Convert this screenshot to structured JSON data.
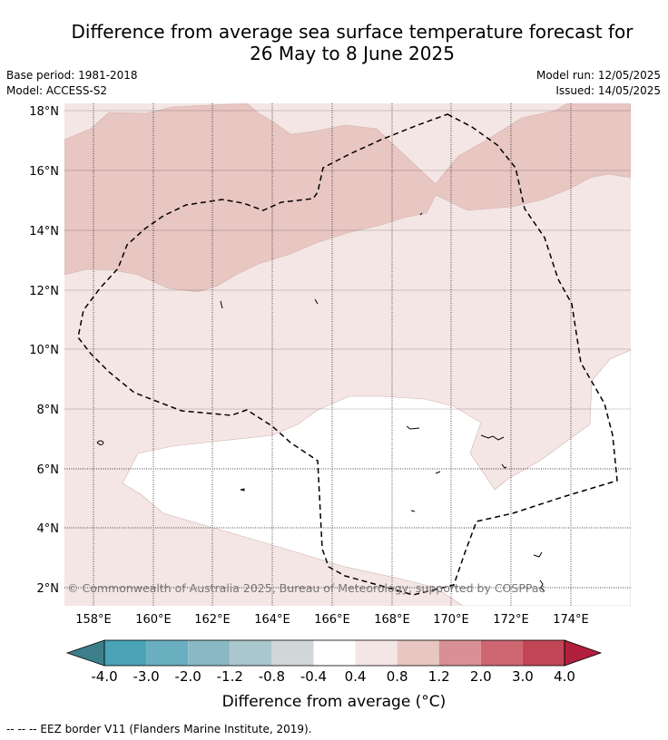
{
  "title_line1": "Difference from average sea surface temperature forecast for",
  "title_line2": "26 May to 8 June 2025",
  "base_period": "Base period: 1981-2018",
  "model": "Model: ACCESS-S2",
  "model_run": "Model run: 12/05/2025",
  "issued": "Issued: 14/05/2025",
  "copyright": "© Commonwealth of Australia 2025, Bureau of Meteorology, supported by COSPPac",
  "lat_labels": [
    "18°N",
    "16°N",
    "14°N",
    "12°N",
    "10°N",
    "8°N",
    "6°N",
    "4°N",
    "2°N"
  ],
  "lon_labels": [
    "158°E",
    "160°E",
    "162°E",
    "164°E",
    "166°E",
    "168°E",
    "170°E",
    "172°E",
    "174°E"
  ],
  "colorbar": {
    "title": "Difference from average (°C)",
    "labels": [
      "-4.0",
      "-3.0",
      "-2.0",
      "-1.2",
      "-0.8",
      "-0.4",
      "0.4",
      "0.8",
      "1.2",
      "2.0",
      "3.0",
      "4.0"
    ],
    "colors": [
      "#3c7f8b",
      "#4aa3b6",
      "#6aafc0",
      "#8bb8c5",
      "#a9c7cc",
      "#d1d6d8",
      "#ffffff",
      "#f4e6e4",
      "#e8c6c2",
      "#d98f96",
      "#cd6670",
      "#c24555",
      "#b21f3c"
    ]
  },
  "legend_text": "--  --  -- EEZ border V11 (Flanders Marine Institute, 2019)."
}
